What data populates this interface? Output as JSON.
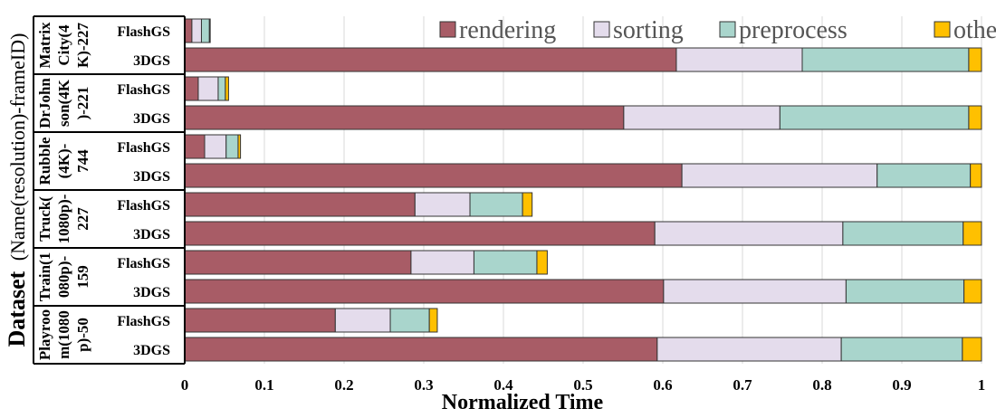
{
  "chart_data": {
    "type": "bar",
    "orientation": "horizontal",
    "stacked": true,
    "xlabel": "Normalized Time",
    "ylabel_main": "Dataset",
    "ylabel_sub": "(Name(resolution)-frameID)",
    "xlim": [
      0,
      1
    ],
    "xticks": [
      "0",
      "0.1",
      "0.2",
      "0.3",
      "0.4",
      "0.5",
      "0.6",
      "0.7",
      "0.8",
      "0.9",
      "1"
    ],
    "grid": true,
    "legend_position": "top-right",
    "series_names": [
      "rendering",
      "sorting",
      "preprocess",
      "others"
    ],
    "colors": [
      "#a85c66",
      "#e4dcec",
      "#a9d5cc",
      "#ffc000"
    ],
    "groups": [
      {
        "label_lines": [
          "Matrix",
          "City(4",
          "K)-227"
        ],
        "bars": [
          {
            "name": "FlashGS",
            "values": [
              0.009,
              0.012,
              0.01,
              0.001
            ]
          },
          {
            "name": "3DGS",
            "values": [
              0.617,
              0.158,
              0.209,
              0.016
            ]
          }
        ]
      },
      {
        "label_lines": [
          "DrJohn",
          "son(4K",
          ")-221"
        ],
        "bars": [
          {
            "name": "FlashGS",
            "values": [
              0.017,
              0.025,
              0.009,
              0.004
            ]
          },
          {
            "name": "3DGS",
            "values": [
              0.551,
              0.196,
              0.237,
              0.016
            ]
          }
        ]
      },
      {
        "label_lines": [
          "Rubble",
          "(4K)-",
          "744"
        ],
        "bars": [
          {
            "name": "FlashGS",
            "values": [
              0.025,
              0.027,
              0.015,
              0.003
            ]
          },
          {
            "name": "3DGS",
            "values": [
              0.624,
              0.245,
              0.117,
              0.014
            ]
          }
        ]
      },
      {
        "label_lines": [
          "Truck(",
          "1080p)-",
          "227"
        ],
        "bars": [
          {
            "name": "FlashGS",
            "values": [
              0.289,
              0.069,
              0.066,
              0.012
            ]
          },
          {
            "name": "3DGS",
            "values": [
              0.59,
              0.236,
              0.151,
              0.023
            ]
          }
        ]
      },
      {
        "label_lines": [
          "Train(1",
          "080p)-",
          "159"
        ],
        "bars": [
          {
            "name": "FlashGS",
            "values": [
              0.284,
              0.079,
              0.079,
              0.013
            ]
          },
          {
            "name": "3DGS",
            "values": [
              0.601,
              0.229,
              0.148,
              0.022
            ]
          }
        ]
      },
      {
        "label_lines": [
          "Playroo",
          "m(1080",
          "p)-50"
        ],
        "bars": [
          {
            "name": "FlashGS",
            "values": [
              0.189,
              0.069,
              0.049,
              0.01
            ]
          },
          {
            "name": "3DGS",
            "values": [
              0.593,
              0.231,
              0.152,
              0.024
            ]
          }
        ]
      }
    ]
  }
}
